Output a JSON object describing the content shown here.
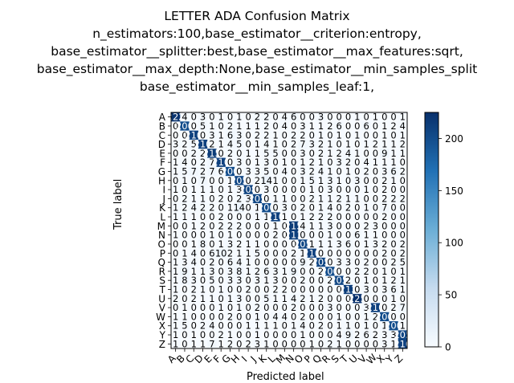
{
  "chart_data": {
    "type": "heatmap",
    "title_lines": [
      "LETTER ADA Confusion Matrix",
      "n_estimators:100,base_estimator__criterion:entropy,",
      "base_estimator__splitter:best,base_estimator__max_features:sqrt,",
      "base_estimator__max_depth:None,base_estimator__min_samples_split",
      "base_estimator__min_samples_leaf:1,"
    ],
    "xlabel": "Predicted label",
    "ylabel": "True label",
    "row_labels": [
      "A",
      "B",
      "C",
      "D",
      "E",
      "F",
      "G",
      "H",
      "I",
      "J",
      "K",
      "L",
      "M",
      "N",
      "O",
      "P",
      "Q",
      "R",
      "S",
      "T",
      "U",
      "V",
      "W",
      "X",
      "Y",
      "Z"
    ],
    "col_labels": [
      "A",
      "B",
      "C",
      "D",
      "E",
      "F",
      "G",
      "H",
      "I",
      "J",
      "K",
      "L",
      "M",
      "N",
      "O",
      "P",
      "Q",
      "R",
      "S",
      "T",
      "U",
      "V",
      "W",
      "X",
      "Y",
      "Z"
    ],
    "matrix": [
      [
        222,
        4,
        0,
        3,
        0,
        1,
        0,
        1,
        0,
        2,
        2,
        0,
        4,
        6,
        0,
        0,
        3,
        0,
        0,
        0,
        1,
        0,
        1,
        0,
        0,
        1
      ],
      [
        0,
        200,
        0,
        5,
        1,
        0,
        2,
        1,
        1,
        1,
        2,
        0,
        4,
        0,
        3,
        1,
        1,
        2,
        6,
        0,
        0,
        6,
        0,
        1,
        2,
        4
      ],
      [
        0,
        0,
        210,
        0,
        3,
        1,
        6,
        3,
        0,
        2,
        2,
        1,
        0,
        2,
        2,
        0,
        1,
        0,
        1,
        0,
        1,
        0,
        0,
        1,
        0,
        1
      ],
      [
        3,
        2,
        5,
        210,
        2,
        1,
        4,
        5,
        0,
        1,
        4,
        1,
        0,
        2,
        7,
        3,
        2,
        1,
        0,
        1,
        0,
        1,
        2,
        1,
        1,
        2
      ],
      [
        0,
        0,
        2,
        2,
        215,
        0,
        2,
        0,
        1,
        1,
        5,
        5,
        0,
        0,
        3,
        0,
        2,
        1,
        2,
        4,
        1,
        0,
        0,
        9,
        1,
        1
      ],
      [
        1,
        4,
        0,
        2,
        7,
        210,
        0,
        3,
        0,
        1,
        3,
        0,
        1,
        0,
        1,
        2,
        1,
        0,
        3,
        2,
        0,
        4,
        1,
        1,
        1,
        0
      ],
      [
        1,
        5,
        7,
        2,
        7,
        6,
        200,
        0,
        3,
        3,
        5,
        0,
        4,
        0,
        3,
        2,
        4,
        1,
        0,
        1,
        0,
        2,
        0,
        3,
        6,
        2
      ],
      [
        0,
        1,
        0,
        7,
        0,
        0,
        1,
        205,
        0,
        2,
        14,
        1,
        0,
        0,
        1,
        5,
        1,
        3,
        1,
        0,
        3,
        0,
        0,
        2,
        1,
        0
      ],
      [
        1,
        0,
        1,
        1,
        1,
        0,
        1,
        3,
        208,
        0,
        3,
        0,
        0,
        0,
        0,
        1,
        0,
        3,
        0,
        0,
        0,
        1,
        0,
        2,
        0,
        0
      ],
      [
        0,
        2,
        1,
        1,
        0,
        2,
        0,
        2,
        3,
        205,
        0,
        1,
        1,
        0,
        0,
        2,
        1,
        1,
        2,
        1,
        1,
        0,
        0,
        2,
        2,
        2
      ],
      [
        1,
        2,
        4,
        2,
        2,
        0,
        1,
        14,
        0,
        1,
        200,
        0,
        3,
        0,
        2,
        0,
        1,
        4,
        0,
        2,
        0,
        1,
        0,
        7,
        0,
        0
      ],
      [
        1,
        1,
        1,
        0,
        0,
        2,
        0,
        0,
        0,
        1,
        1,
        210,
        1,
        0,
        1,
        2,
        2,
        2,
        0,
        0,
        0,
        0,
        0,
        2,
        0,
        0
      ],
      [
        0,
        0,
        1,
        2,
        0,
        2,
        2,
        2,
        0,
        0,
        0,
        1,
        0,
        215,
        4,
        1,
        1,
        3,
        0,
        0,
        0,
        2,
        3,
        0,
        0,
        0
      ],
      [
        1,
        0,
        0,
        0,
        1,
        0,
        1,
        0,
        0,
        0,
        0,
        2,
        0,
        211,
        0,
        0,
        0,
        1,
        0,
        0,
        6,
        1,
        1,
        0,
        0,
        0
      ],
      [
        0,
        0,
        1,
        8,
        0,
        1,
        3,
        2,
        1,
        1,
        0,
        0,
        0,
        0,
        205,
        1,
        1,
        1,
        3,
        6,
        0,
        1,
        3,
        2,
        0,
        2
      ],
      [
        0,
        1,
        4,
        0,
        6,
        10,
        2,
        1,
        1,
        5,
        0,
        0,
        0,
        2,
        1,
        210,
        0,
        0,
        0,
        0,
        0,
        0,
        0,
        2,
        0,
        2
      ],
      [
        1,
        3,
        4,
        0,
        2,
        0,
        6,
        4,
        1,
        0,
        0,
        0,
        0,
        0,
        9,
        2,
        205,
        0,
        3,
        3,
        0,
        2,
        0,
        0,
        2,
        5
      ],
      [
        1,
        9,
        1,
        1,
        3,
        0,
        3,
        8,
        1,
        2,
        6,
        3,
        1,
        9,
        0,
        0,
        2,
        200,
        0,
        0,
        2,
        2,
        0,
        1,
        0,
        1
      ],
      [
        1,
        8,
        3,
        0,
        5,
        0,
        3,
        3,
        0,
        3,
        1,
        3,
        0,
        0,
        2,
        0,
        0,
        2,
        205,
        2,
        0,
        1,
        0,
        1,
        2,
        1
      ],
      [
        1,
        0,
        2,
        1,
        0,
        1,
        0,
        0,
        2,
        0,
        0,
        2,
        2,
        0,
        0,
        0,
        0,
        0,
        0,
        213,
        0,
        3,
        0,
        3,
        6,
        1
      ],
      [
        2,
        0,
        2,
        1,
        1,
        0,
        1,
        3,
        0,
        0,
        5,
        1,
        1,
        4,
        2,
        1,
        2,
        0,
        0,
        0,
        225,
        0,
        0,
        0,
        1,
        0
      ],
      [
        0,
        1,
        0,
        0,
        0,
        1,
        0,
        1,
        0,
        2,
        0,
        0,
        0,
        2,
        0,
        0,
        0,
        3,
        0,
        0,
        0,
        3,
        210,
        0,
        2,
        7
      ],
      [
        1,
        1,
        0,
        0,
        0,
        0,
        2,
        0,
        0,
        1,
        0,
        4,
        4,
        0,
        2,
        0,
        0,
        0,
        1,
        0,
        0,
        1,
        2,
        200,
        0,
        0
      ],
      [
        1,
        5,
        0,
        2,
        4,
        0,
        0,
        0,
        1,
        1,
        1,
        1,
        0,
        1,
        4,
        0,
        2,
        0,
        1,
        1,
        0,
        1,
        0,
        1,
        200,
        1
      ],
      [
        1,
        0,
        1,
        0,
        0,
        2,
        1,
        0,
        0,
        1,
        0,
        0,
        0,
        0,
        1,
        0,
        0,
        0,
        4,
        9,
        2,
        6,
        2,
        3,
        3,
        205
      ],
      [
        1,
        0,
        1,
        1,
        7,
        1,
        2,
        0,
        2,
        3,
        1,
        0,
        0,
        0,
        0,
        1,
        0,
        2,
        1,
        0,
        0,
        0,
        0,
        3,
        1,
        210
      ]
    ],
    "colorbar": {
      "min": 0,
      "max": 225,
      "ticks": [
        0,
        50,
        100,
        150,
        200
      ]
    },
    "colors": {
      "low": "#f7fbff",
      "high": "#08306b",
      "text_dark": "#000000",
      "text_light": "#ffffff"
    },
    "grid": false
  }
}
